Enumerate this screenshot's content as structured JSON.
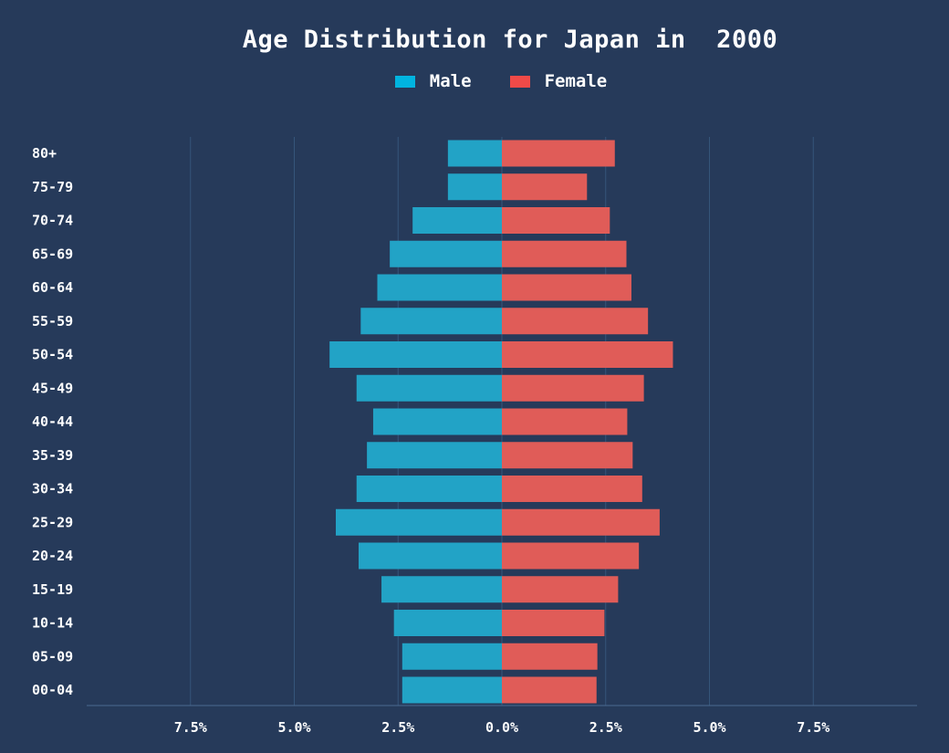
{
  "chart_data": {
    "type": "bar",
    "orientation": "horizontal",
    "layout": "population-pyramid",
    "title": "Age Distribution for Japan in  2000",
    "xlabel": "",
    "ylabel": "",
    "categories": [
      "80+",
      "75-79",
      "70-74",
      "65-69",
      "60-64",
      "55-59",
      "50-54",
      "45-49",
      "40-44",
      "35-39",
      "30-34",
      "25-29",
      "20-24",
      "15-19",
      "10-14",
      "05-09",
      "00-04"
    ],
    "series": [
      {
        "name": "Male",
        "color": "#22a3c6",
        "values": [
          -1.3,
          -1.3,
          -2.15,
          -2.7,
          -3.0,
          -3.4,
          -4.15,
          -3.5,
          -3.1,
          -3.25,
          -3.5,
          -4.0,
          -3.45,
          -2.9,
          -2.6,
          -2.4,
          -2.4
        ]
      },
      {
        "name": "Female",
        "color": "#e05c58",
        "values": [
          2.72,
          2.05,
          2.6,
          3.0,
          3.12,
          3.52,
          4.12,
          3.42,
          3.02,
          3.15,
          3.38,
          3.8,
          3.3,
          2.8,
          2.47,
          2.3,
          2.28
        ]
      }
    ],
    "xlim": [
      -10,
      10
    ],
    "xticks": [
      -7.5,
      -5,
      -2.5,
      0,
      2.5,
      5,
      7.5
    ],
    "xtick_labels": [
      "7.5%",
      "5.0%",
      "2.5%",
      "0.0%",
      "2.5%",
      "5.0%",
      "7.5%"
    ],
    "grid": true,
    "legend_position": "top-center"
  },
  "legend": {
    "items": [
      {
        "label": "Male",
        "color": "#00b4e0"
      },
      {
        "label": "Female",
        "color": "#f04a48"
      }
    ]
  },
  "colors": {
    "background": "#263a5a",
    "grid": "#35557a",
    "axis": "#4a6a90",
    "text": "#ffffff"
  }
}
